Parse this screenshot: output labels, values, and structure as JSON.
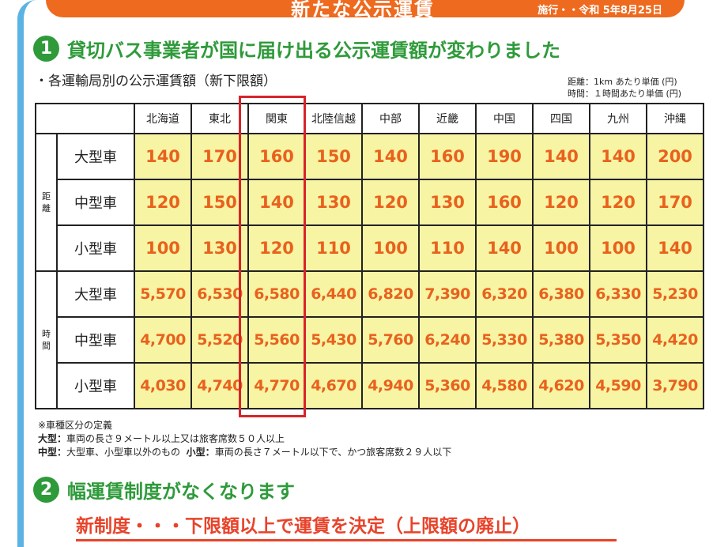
{
  "banner": {
    "title": "新たな公示運賃",
    "date": "施行・・令和 5年8月25日"
  },
  "section1": {
    "number": "1",
    "title": "貸切バス事業者が国に届け出る公示運賃額が変わりました"
  },
  "subtitle": "・各運輸局別の公示運賃額（新下限額）",
  "units": {
    "distance": "距離：1km あたり単価 (円)",
    "time": "時間：１時間あたり単価 (円)"
  },
  "table": {
    "regions": [
      "北海道",
      "東北",
      "関東",
      "北陸信越",
      "中部",
      "近畿",
      "中国",
      "四国",
      "九州",
      "沖縄"
    ],
    "categories": [
      {
        "label_chars": [
          "距",
          "離"
        ],
        "rows": [
          {
            "vehicle": "大型車",
            "values": [
              "140",
              "170",
              "160",
              "150",
              "140",
              "160",
              "190",
              "140",
              "140",
              "200"
            ]
          },
          {
            "vehicle": "中型車",
            "values": [
              "120",
              "150",
              "140",
              "130",
              "120",
              "130",
              "160",
              "120",
              "120",
              "170"
            ]
          },
          {
            "vehicle": "小型車",
            "values": [
              "100",
              "130",
              "120",
              "110",
              "100",
              "110",
              "140",
              "100",
              "100",
              "140"
            ]
          }
        ]
      },
      {
        "label_chars": [
          "時",
          "間"
        ],
        "rows": [
          {
            "vehicle": "大型車",
            "values": [
              "5,570",
              "6,530",
              "6,580",
              "6,440",
              "6,820",
              "7,390",
              "6,320",
              "6,380",
              "6,330",
              "5,230"
            ]
          },
          {
            "vehicle": "中型車",
            "values": [
              "4,700",
              "5,520",
              "5,560",
              "5,430",
              "5,760",
              "6,240",
              "5,330",
              "5,380",
              "5,350",
              "4,420"
            ]
          },
          {
            "vehicle": "小型車",
            "values": [
              "4,030",
              "4,740",
              "4,770",
              "4,670",
              "4,940",
              "5,360",
              "4,580",
              "4,620",
              "4,590",
              "3,790"
            ]
          }
        ]
      }
    ],
    "highlight_color": "#d8232a"
  },
  "notes": {
    "heading": "※車種区分の定義",
    "large_label": "大型：",
    "large_text": "車両の長さ９メートル以上又は旅客席数５０人以上",
    "medium_label": "中型：",
    "medium_text": "大型車、小型車以外のもの",
    "small_label": "小型：",
    "small_text": "車両の長さ７メートル以下で、かつ旅客席数２９人以下"
  },
  "section2": {
    "number": "2",
    "title": "幅運賃制度がなくなります"
  },
  "new_system": "新制度・・・下限額以上で運賃を決定（上限額の廃止）",
  "colors": {
    "banner": "#ee6a1e",
    "section_green": "#2e9a3a",
    "value_text": "#e8621d",
    "cell_fill": "#f7f4a4",
    "frame_blue": "#5bb3e3"
  }
}
